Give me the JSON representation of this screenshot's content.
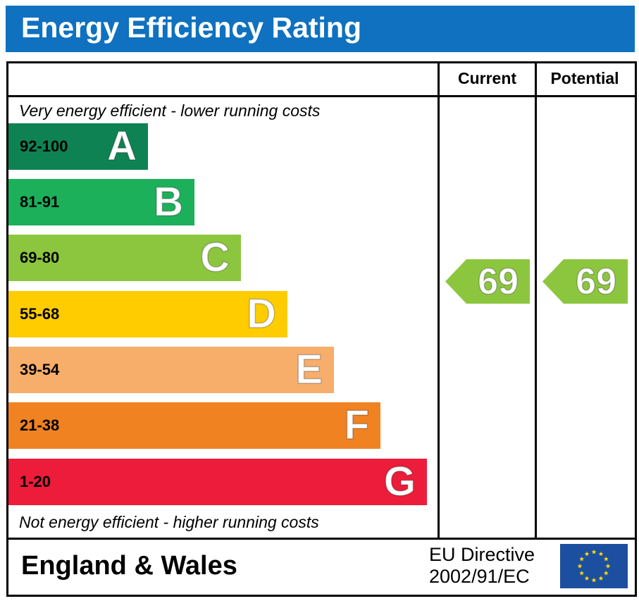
{
  "title": "Energy Efficiency Rating",
  "columns": {
    "current": "Current",
    "potential": "Potential"
  },
  "notes": {
    "top": "Very energy efficient - lower running costs",
    "bottom": "Not energy efficient - higher running costs"
  },
  "chart_data": {
    "type": "bar",
    "title": "Energy Efficiency Rating",
    "categories": [
      "A",
      "B",
      "C",
      "D",
      "E",
      "F",
      "G"
    ],
    "series": [
      {
        "ranges": [
          "92-100",
          "81-91",
          "69-80",
          "55-68",
          "39-54",
          "21-38",
          "1-20"
        ],
        "colors": [
          "#0e8253",
          "#1cb05a",
          "#8cc63f",
          "#ffcc00",
          "#f7ae6b",
          "#f08222",
          "#ec1c3a"
        ]
      }
    ],
    "current": {
      "value": 69,
      "band": "C",
      "color": "#8cc63f"
    },
    "potential": {
      "value": 69,
      "band": "C",
      "color": "#8cc63f"
    }
  },
  "footer": {
    "region": "England & Wales",
    "directive_line1": "EU Directive",
    "directive_line2": "2002/91/EC"
  }
}
